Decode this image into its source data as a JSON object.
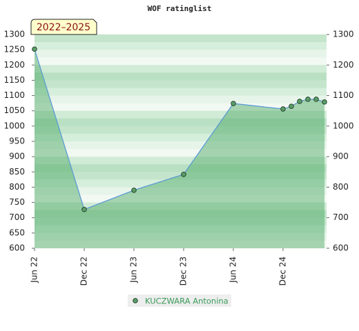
{
  "chart_data": {
    "type": "line",
    "title": "WOF ratinglist",
    "annotation": "2022–2025",
    "x": [
      0,
      6,
      12,
      18,
      24,
      30,
      31,
      32,
      33,
      34,
      35
    ],
    "series": [
      {
        "name": "KUCZWARA Antonina",
        "color": "#5b9bd5",
        "marker_color": "#5a9e68",
        "values": [
          1252,
          727,
          790,
          842,
          1074,
          1056,
          1065,
          1081,
          1088,
          1088,
          1079
        ]
      }
    ],
    "xlim": [
      0,
      35.25
    ],
    "xticks": [
      {
        "value": 0,
        "label": "Jun 22"
      },
      {
        "value": 6,
        "label": "Dec 22"
      },
      {
        "value": 12,
        "label": "Jun 23"
      },
      {
        "value": 18,
        "label": "Dec 23"
      },
      {
        "value": 24,
        "label": "Jun 24"
      },
      {
        "value": 30,
        "label": "Dec 24"
      }
    ],
    "ylim": [
      600,
      1300
    ],
    "yticks": [
      600,
      650,
      700,
      750,
      800,
      850,
      900,
      950,
      1000,
      1050,
      1100,
      1150,
      1200,
      1250,
      1300
    ],
    "y2lim": [
      600,
      1300
    ],
    "y2ticks": [
      600,
      700,
      800,
      900,
      1000,
      1100,
      1200,
      1300
    ]
  }
}
